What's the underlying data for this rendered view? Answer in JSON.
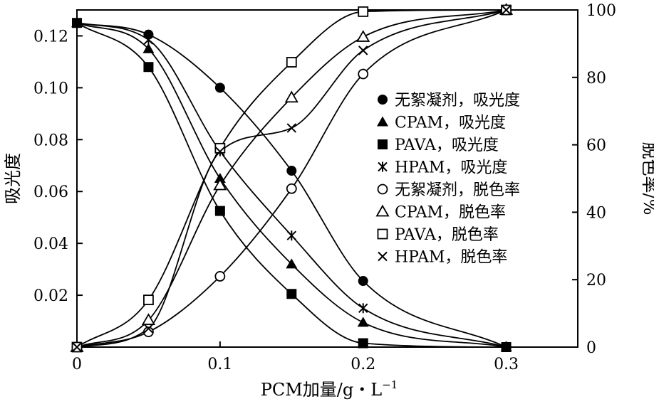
{
  "chart_data": {
    "type": "scatter",
    "title": "",
    "xlabel": "PCM加量/g・L",
    "xlabel_sup": "−1",
    "ylabel_left": "吸光度",
    "ylabel_right": "脱色率/%",
    "xlim": [
      0,
      0.35
    ],
    "ylim_left": [
      0,
      0.13
    ],
    "ylim_right": [
      0,
      100
    ],
    "x_ticks": [
      0,
      0.1,
      0.2,
      0.3
    ],
    "x_tick_labels": [
      "0",
      "0.1",
      "0.2",
      "0.3"
    ],
    "y_left_ticks": [
      0.02,
      0.04,
      0.06,
      0.08,
      0.1,
      0.12
    ],
    "y_left_tick_labels": [
      "0.02",
      "0.04",
      "0.06",
      "0.08",
      "0.10",
      "0.12"
    ],
    "y_right_ticks": [
      0,
      20,
      40,
      60,
      80,
      100
    ],
    "y_right_tick_labels": [
      "0",
      "20",
      "40",
      "60",
      "80",
      "100"
    ],
    "grid": false,
    "legend_position": "right",
    "x": [
      0,
      0.05,
      0.1,
      0.15,
      0.2,
      0.3
    ],
    "series": [
      {
        "name": "无絮凝剂，吸光度",
        "axis": "left",
        "marker": "filled-circle",
        "values": [
          0.125,
          0.1205,
          0.1,
          0.068,
          0.0255,
          0.0
        ]
      },
      {
        "name": "CPAM，吸光度",
        "axis": "left",
        "marker": "filled-triangle",
        "values": [
          0.125,
          0.115,
          0.065,
          0.032,
          0.0095,
          0.0
        ]
      },
      {
        "name": "PAVA，吸光度",
        "axis": "left",
        "marker": "filled-square",
        "values": [
          0.125,
          0.108,
          0.0525,
          0.0205,
          0.0015,
          0.0
        ]
      },
      {
        "name": "HPAM，吸光度",
        "axis": "left",
        "marker": "asterisk",
        "values": [
          0.125,
          0.1185,
          0.0755,
          0.043,
          0.015,
          0.0
        ]
      },
      {
        "name": "无絮凝剂，脱色率",
        "axis": "right",
        "marker": "open-circle",
        "values": [
          0,
          4.5,
          21,
          47,
          81,
          100
        ]
      },
      {
        "name": "CPAM，脱色率",
        "axis": "right",
        "marker": "open-triangle",
        "values": [
          0,
          8,
          48,
          74,
          92,
          100
        ]
      },
      {
        "name": "PAVA，脱色率",
        "axis": "right",
        "marker": "open-square",
        "values": [
          0,
          14,
          59,
          84.5,
          99.5,
          100
        ]
      },
      {
        "name": "HPAM，脱色率",
        "axis": "right",
        "marker": "cross",
        "values": [
          0,
          5.5,
          58,
          65,
          88,
          100
        ]
      }
    ]
  }
}
